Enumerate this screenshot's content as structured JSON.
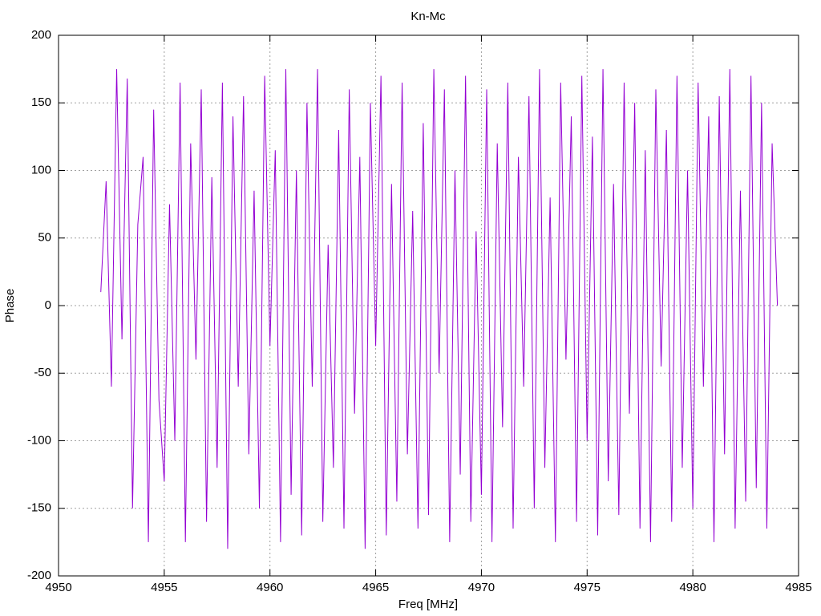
{
  "chart_data": {
    "type": "line",
    "title": "Kn-Mc",
    "x_label": "Freq [MHz]",
    "y_label": "Phase",
    "color": "#9400d3",
    "grid": true,
    "xlim": [
      4950,
      4985
    ],
    "xticks": [
      4950,
      4955,
      4960,
      4965,
      4970,
      4975,
      4980,
      4985
    ],
    "ylim": [
      -200,
      200
    ],
    "yticks": [
      -200,
      -150,
      -100,
      -50,
      0,
      50,
      100,
      150,
      200
    ],
    "x": [
      4952,
      4952.25,
      4952.5,
      4952.75,
      4953,
      4953.25,
      4953.5,
      4953.75,
      4954,
      4954.25,
      4954.5,
      4954.75,
      4955,
      4955.25,
      4955.5,
      4955.75,
      4956,
      4956.25,
      4956.5,
      4956.75,
      4957,
      4957.25,
      4957.5,
      4957.75,
      4958,
      4958.25,
      4958.5,
      4958.75,
      4959,
      4959.25,
      4959.5,
      4959.75,
      4960,
      4960.25,
      4960.5,
      4960.75,
      4961,
      4961.25,
      4961.5,
      4961.75,
      4962,
      4962.25,
      4962.5,
      4962.75,
      4963,
      4963.25,
      4963.5,
      4963.75,
      4964,
      4964.25,
      4964.5,
      4964.75,
      4965,
      4965.25,
      4965.5,
      4965.75,
      4966,
      4966.25,
      4966.5,
      4966.75,
      4967,
      4967.25,
      4967.5,
      4967.75,
      4968,
      4968.25,
      4968.5,
      4968.75,
      4969,
      4969.25,
      4969.5,
      4969.75,
      4970,
      4970.25,
      4970.5,
      4970.75,
      4971,
      4971.25,
      4971.5,
      4971.75,
      4972,
      4972.25,
      4972.5,
      4972.75,
      4973,
      4973.25,
      4973.5,
      4973.75,
      4974,
      4974.25,
      4974.5,
      4974.75,
      4975,
      4975.25,
      4975.5,
      4975.75,
      4976,
      4976.25,
      4976.5,
      4976.75,
      4977,
      4977.25,
      4977.5,
      4977.75,
      4978,
      4978.25,
      4978.5,
      4978.75,
      4979,
      4979.25,
      4979.5,
      4979.75,
      4980,
      4980.25,
      4980.5,
      4980.75,
      4981,
      4981.25,
      4981.5,
      4981.75,
      4982,
      4982.25,
      4982.5,
      4982.75,
      4983,
      4983.25,
      4983.5,
      4983.75,
      4984
    ],
    "values": [
      10,
      92,
      -60,
      175,
      -25,
      168,
      -150,
      60,
      110,
      -175,
      145,
      -70,
      -130,
      75,
      -100,
      165,
      -175,
      120,
      -40,
      160,
      -160,
      95,
      -120,
      165,
      -180,
      140,
      -60,
      155,
      -110,
      85,
      -150,
      170,
      -30,
      115,
      -175,
      175,
      -140,
      100,
      -170,
      150,
      -60,
      175,
      -160,
      45,
      -120,
      130,
      -165,
      160,
      -80,
      110,
      -180,
      150,
      -30,
      170,
      -170,
      90,
      -145,
      165,
      -110,
      70,
      -165,
      135,
      -155,
      175,
      -50,
      160,
      -175,
      100,
      -125,
      170,
      -160,
      55,
      -140,
      160,
      -175,
      120,
      -90,
      165,
      -165,
      110,
      -60,
      155,
      -150,
      175,
      -120,
      80,
      -175,
      165,
      -40,
      140,
      -160,
      170,
      -100,
      125,
      -170,
      175,
      -130,
      90,
      -155,
      165,
      -80,
      150,
      -165,
      115,
      -175,
      160,
      -45,
      130,
      -160,
      170,
      -120,
      100,
      -150,
      165,
      -60,
      140,
      -175,
      155,
      -110,
      175,
      -165,
      85,
      -145,
      170,
      -135,
      150,
      -165,
      120,
      0
    ]
  }
}
